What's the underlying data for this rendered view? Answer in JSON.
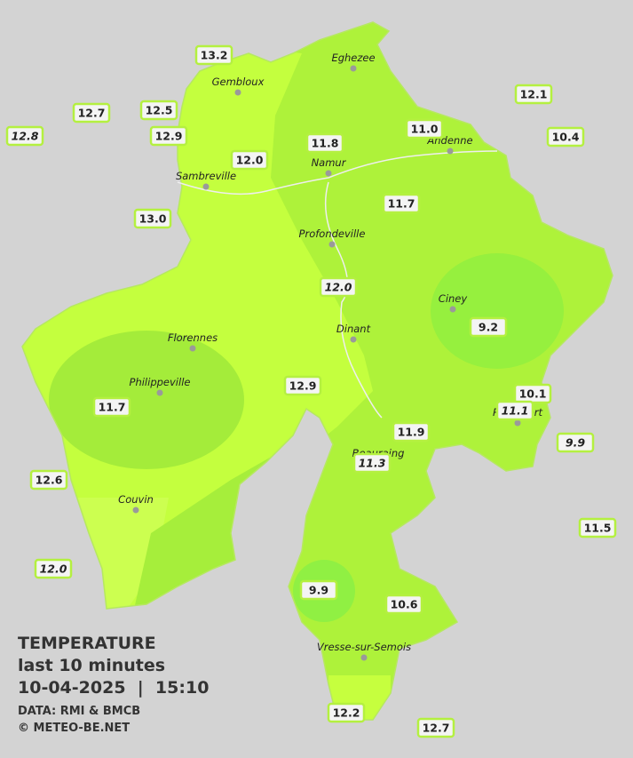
{
  "legend": {
    "title": "TEMPERATURE",
    "subtitle": "last 10 minutes",
    "datetime": "10-04-2025  |  15:10",
    "source": "DATA: RMI & BMCB",
    "credit": "© METEO-BE.NET"
  },
  "cities": [
    "Eghezee",
    "Gembloux",
    "Andenne",
    "Namur",
    "Sambreville",
    "Profondeville",
    "Ciney",
    "Dinant",
    "Florennes",
    "Philippeville",
    "Rochefort",
    "Beauraing",
    "Couvin",
    "Vresse-sur-Semois"
  ],
  "readings": [
    "13.2",
    "12.7",
    "12.5",
    "12.9",
    "12.8",
    "12.1",
    "10.4",
    "11.0",
    "11.8",
    "12.0",
    "13.0",
    "11.7",
    "12.0",
    "9.2",
    "12.9",
    "11.7",
    "10.1",
    "11.1",
    "9.9",
    "11.9",
    "11.3",
    "12.6",
    "11.5",
    "12.0",
    "9.9",
    "10.6",
    "12.2",
    "12.7"
  ]
}
